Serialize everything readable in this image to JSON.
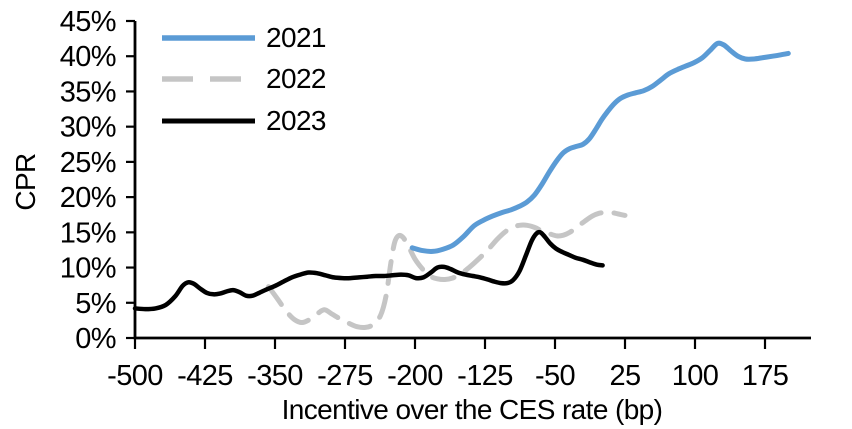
{
  "chart_data": {
    "type": "line",
    "title": "",
    "xlabel": "Incentive over the CES rate (bp)",
    "ylabel": "CPR",
    "x_ticks": [
      -500,
      -425,
      -350,
      -275,
      -200,
      -125,
      -50,
      25,
      100,
      175
    ],
    "y_ticks": [
      0,
      5,
      10,
      15,
      20,
      25,
      30,
      35,
      40,
      45
    ],
    "y_tick_suffix": "%",
    "xlim": [
      -500,
      224
    ],
    "ylim": [
      0,
      45
    ],
    "grid": false,
    "legend_position": "upper-left-inside",
    "axis_color": "#000000",
    "series": [
      {
        "name": "2021",
        "color": "#5B9BD5",
        "dash": "",
        "legend_dash": "",
        "width": 5,
        "points": [
          [
            -203,
            12.8
          ],
          [
            -192,
            12.4
          ],
          [
            -181,
            12.3
          ],
          [
            -170,
            12.6
          ],
          [
            -159,
            13.2
          ],
          [
            -148,
            14.4
          ],
          [
            -137,
            15.9
          ],
          [
            -127,
            16.7
          ],
          [
            -117,
            17.3
          ],
          [
            -107,
            17.8
          ],
          [
            -97,
            18.2
          ],
          [
            -88,
            18.7
          ],
          [
            -80,
            19.3
          ],
          [
            -72,
            20.3
          ],
          [
            -64,
            21.8
          ],
          [
            -56,
            23.6
          ],
          [
            -48,
            25.2
          ],
          [
            -41,
            26.3
          ],
          [
            -34,
            26.9
          ],
          [
            -27,
            27.2
          ],
          [
            -20,
            27.5
          ],
          [
            -13,
            28.3
          ],
          [
            -6,
            29.7
          ],
          [
            0,
            31
          ],
          [
            6,
            32.1
          ],
          [
            13,
            33.2
          ],
          [
            20,
            34
          ],
          [
            28,
            34.5
          ],
          [
            36,
            34.8
          ],
          [
            45,
            35.1
          ],
          [
            54,
            35.7
          ],
          [
            63,
            36.6
          ],
          [
            72,
            37.5
          ],
          [
            81,
            38.1
          ],
          [
            90,
            38.6
          ],
          [
            99,
            39.1
          ],
          [
            108,
            39.8
          ],
          [
            116,
            40.8
          ],
          [
            124,
            41.8
          ],
          [
            131,
            41.6
          ],
          [
            138,
            40.8
          ],
          [
            146,
            40
          ],
          [
            154,
            39.6
          ],
          [
            163,
            39.6
          ],
          [
            173,
            39.8
          ],
          [
            183,
            40
          ],
          [
            192,
            40.2
          ],
          [
            200,
            40.4
          ]
        ]
      },
      {
        "name": "2022",
        "color": "#C5C5C5",
        "dash": "22 13",
        "legend_dash": "31 17",
        "width": 5,
        "points": [
          [
            -357,
            7.3
          ],
          [
            -347,
            5.5
          ],
          [
            -338,
            3.8
          ],
          [
            -329,
            2.6
          ],
          [
            -321,
            2.2
          ],
          [
            -312,
            2.7
          ],
          [
            -304,
            3.5
          ],
          [
            -297,
            4
          ],
          [
            -289,
            3.4
          ],
          [
            -280,
            2.7
          ],
          [
            -271,
            2.1
          ],
          [
            -262,
            1.6
          ],
          [
            -253,
            1.5
          ],
          [
            -245,
            1.9
          ],
          [
            -237,
            3.2
          ],
          [
            -231,
            6
          ],
          [
            -226,
            10.5
          ],
          [
            -222,
            13.5
          ],
          [
            -218,
            14.5
          ],
          [
            -213,
            14.3
          ],
          [
            -207,
            13
          ],
          [
            -200,
            11.2
          ],
          [
            -192,
            9.8
          ],
          [
            -184,
            8.8
          ],
          [
            -176,
            8.4
          ],
          [
            -168,
            8.3
          ],
          [
            -160,
            8.5
          ],
          [
            -152,
            9
          ],
          [
            -144,
            9.8
          ],
          [
            -136,
            10.7
          ],
          [
            -128,
            11.7
          ],
          [
            -120,
            12.8
          ],
          [
            -112,
            14
          ],
          [
            -104,
            15
          ],
          [
            -96,
            15.7
          ],
          [
            -88,
            16
          ],
          [
            -80,
            16
          ],
          [
            -72,
            15.7
          ],
          [
            -64,
            15.2
          ],
          [
            -56,
            14.8
          ],
          [
            -48,
            14.5
          ],
          [
            -41,
            14.6
          ],
          [
            -34,
            15
          ],
          [
            -26,
            15.8
          ],
          [
            -18,
            16.6
          ],
          [
            -10,
            17.3
          ],
          [
            -3,
            17.7
          ],
          [
            4,
            17.8
          ],
          [
            11,
            17.8
          ],
          [
            18,
            17.6
          ],
          [
            25,
            17.4
          ]
        ]
      },
      {
        "name": "2023",
        "color": "#000000",
        "dash": "",
        "legend_dash": "",
        "width": 4.5,
        "points": [
          [
            -500,
            4.2
          ],
          [
            -489,
            4.1
          ],
          [
            -478,
            4.2
          ],
          [
            -467,
            4.7
          ],
          [
            -457,
            5.9
          ],
          [
            -449,
            7.4
          ],
          [
            -443,
            7.9
          ],
          [
            -437,
            7.7
          ],
          [
            -430,
            7
          ],
          [
            -423,
            6.4
          ],
          [
            -416,
            6.2
          ],
          [
            -409,
            6.3
          ],
          [
            -402,
            6.6
          ],
          [
            -395,
            6.8
          ],
          [
            -388,
            6.5
          ],
          [
            -381,
            6
          ],
          [
            -374,
            6
          ],
          [
            -367,
            6.4
          ],
          [
            -359,
            6.9
          ],
          [
            -350,
            7.4
          ],
          [
            -341,
            8
          ],
          [
            -332,
            8.6
          ],
          [
            -323,
            9
          ],
          [
            -314,
            9.3
          ],
          [
            -305,
            9.2
          ],
          [
            -296,
            8.9
          ],
          [
            -287,
            8.6
          ],
          [
            -278,
            8.5
          ],
          [
            -269,
            8.5
          ],
          [
            -260,
            8.6
          ],
          [
            -251,
            8.7
          ],
          [
            -242,
            8.8
          ],
          [
            -233,
            8.8
          ],
          [
            -224,
            8.9
          ],
          [
            -215,
            9
          ],
          [
            -207,
            8.9
          ],
          [
            -199,
            8.5
          ],
          [
            -191,
            8.6
          ],
          [
            -183,
            9.3
          ],
          [
            -176,
            10
          ],
          [
            -169,
            10.1
          ],
          [
            -162,
            9.8
          ],
          [
            -154,
            9.3
          ],
          [
            -146,
            9
          ],
          [
            -138,
            8.8
          ],
          [
            -130,
            8.6
          ],
          [
            -122,
            8.3
          ],
          [
            -115,
            8
          ],
          [
            -108,
            7.8
          ],
          [
            -101,
            7.8
          ],
          [
            -95,
            8.2
          ],
          [
            -88,
            9.5
          ],
          [
            -81,
            11.8
          ],
          [
            -75,
            13.8
          ],
          [
            -70,
            14.8
          ],
          [
            -66,
            15
          ],
          [
            -61,
            14.4
          ],
          [
            -55,
            13.4
          ],
          [
            -49,
            12.7
          ],
          [
            -42,
            12.2
          ],
          [
            -35,
            11.8
          ],
          [
            -28,
            11.4
          ],
          [
            -20,
            11.1
          ],
          [
            -12,
            10.7
          ],
          [
            -5,
            10.4
          ],
          [
            1,
            10.3
          ]
        ]
      }
    ]
  }
}
